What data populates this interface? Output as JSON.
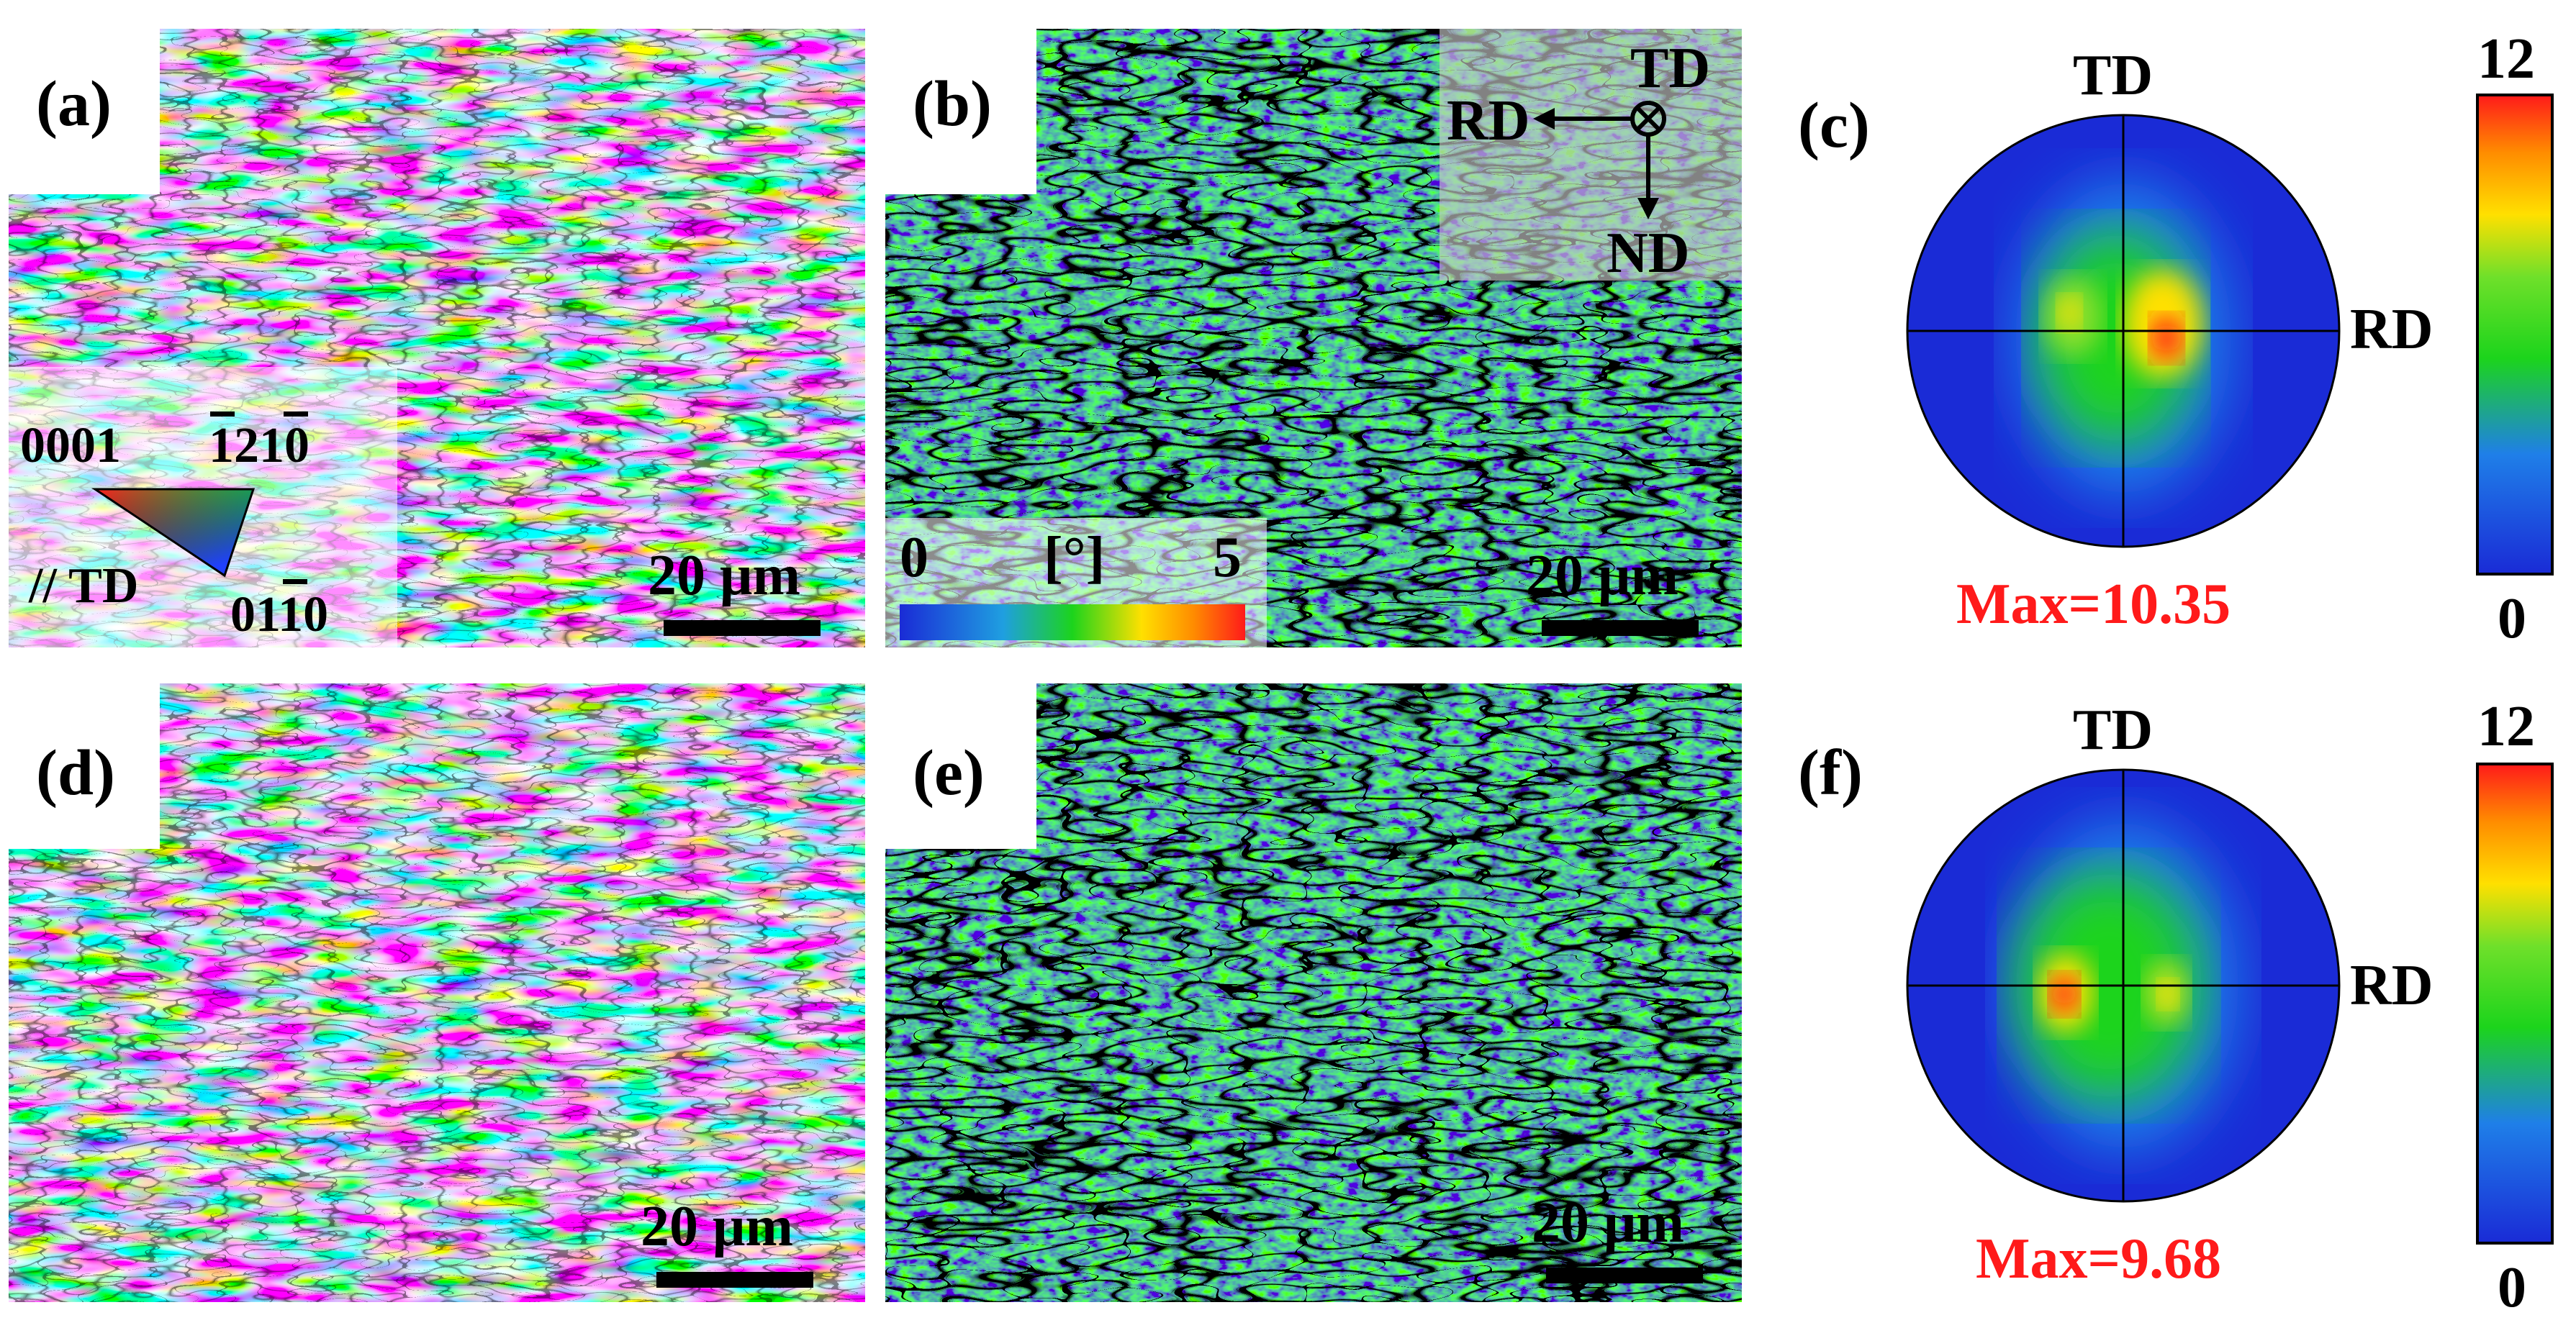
{
  "figure": {
    "panels": {
      "a": {
        "label": "(a)",
        "scale_bar": "20 μm"
      },
      "b": {
        "label": "(b)",
        "scale_bar": "20 μm"
      },
      "c": {
        "label": "(c)",
        "max_text": "Max=10.35"
      },
      "d": {
        "label": "(d)",
        "scale_bar": "20 μm"
      },
      "e": {
        "label": "(e)",
        "scale_bar": "20 μm"
      },
      "f": {
        "label": "(f)",
        "max_text": "Max=9.68"
      }
    },
    "ipf_legend": {
      "corner_0001": "0001",
      "corner_1210": "1210",
      "corner_0110": "0110",
      "direction": "// TD"
    },
    "kam_legend": {
      "min": "0",
      "unit": "[°]",
      "max": "5"
    },
    "axes": {
      "td": "TD",
      "rd": "RD",
      "nd": "ND",
      "td_symbol": "⊗"
    },
    "pole_figure": {
      "td": "TD",
      "rd": "RD"
    },
    "colorbar": {
      "max": "12",
      "min": "0"
    },
    "colors": {
      "low": "#1a2bd6",
      "mid": "#1cd41c",
      "high": "#ffe000",
      "peak": "#ff1a1a",
      "max_text": "#ff1a1a"
    }
  }
}
